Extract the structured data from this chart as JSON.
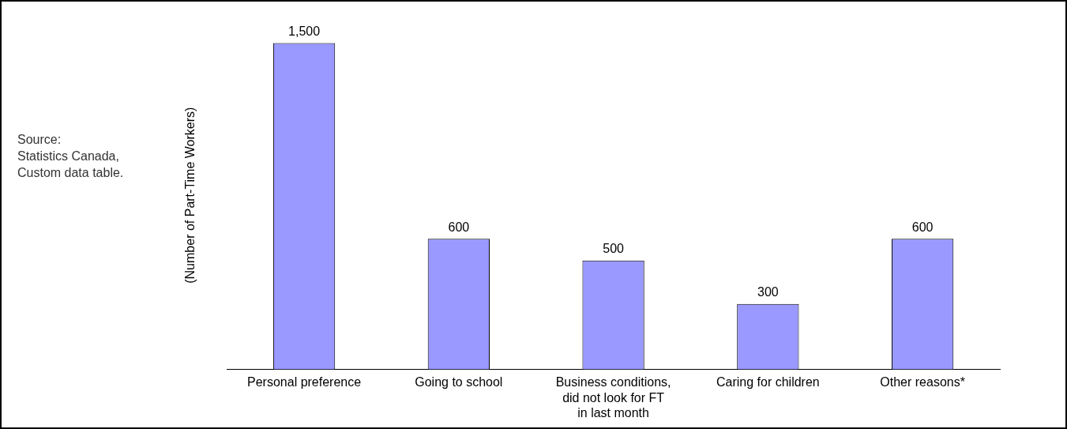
{
  "chart_data": {
    "type": "bar",
    "ylabel": "(Number of Part-Time Workers)",
    "categories": [
      "Personal preference",
      "Going to school",
      "Business conditions, did not look for FT in last month",
      "Caring for children",
      "Other reasons*"
    ],
    "values": [
      1500,
      600,
      500,
      300,
      600
    ],
    "color": "#9999ff",
    "data_labels": true,
    "value_labels": [
      "1,500",
      "600",
      "500",
      "300",
      "600"
    ],
    "annotations": [
      "Source:\nStatistics Canada,\nCustom data table."
    ],
    "grid": false,
    "legend": false
  }
}
